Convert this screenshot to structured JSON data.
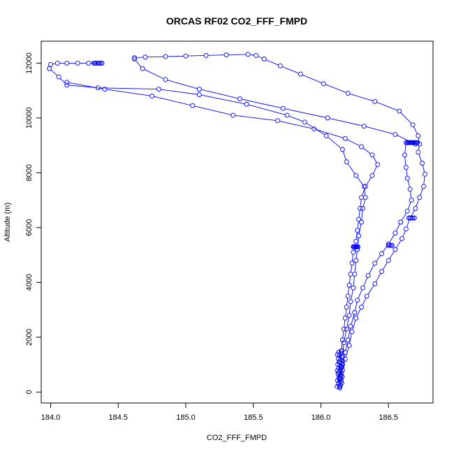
{
  "chart_data": {
    "type": "scatter",
    "title": "ORCAS RF02 CO2_FFF_FMPD",
    "xlabel": "CO2_FFF_FMPD",
    "ylabel": "Altitude (m)",
    "xlim": [
      183.93,
      186.83
    ],
    "ylim": [
      -400,
      12800
    ],
    "xticks": [
      184.0,
      184.5,
      185.0,
      185.5,
      186.0,
      186.5
    ],
    "xtick_labels": [
      "184.0",
      "184.5",
      "185.0",
      "185.5",
      "186.0",
      "186.5"
    ],
    "yticks": [
      0,
      2000,
      4000,
      6000,
      8000,
      10000,
      12000
    ],
    "ytick_labels": [
      "0",
      "2000",
      "4000",
      "6000",
      "8000",
      "10000",
      "12000"
    ],
    "grid": false,
    "color": "#0000ff",
    "marker": "open-circle",
    "series": [
      {
        "points": [
          [
            186.14,
            200
          ],
          [
            186.14,
            500
          ],
          [
            186.15,
            900
          ],
          [
            186.16,
            1300
          ],
          [
            186.17,
            1800
          ],
          [
            186.19,
            2300
          ],
          [
            186.21,
            2800
          ],
          [
            186.22,
            3300
          ],
          [
            186.24,
            3800
          ],
          [
            186.25,
            4300
          ],
          [
            186.26,
            4800
          ],
          [
            186.27,
            5200
          ],
          [
            186.28,
            5700
          ],
          [
            186.3,
            6200
          ],
          [
            186.31,
            6700
          ],
          [
            186.33,
            7100
          ],
          [
            186.32,
            7500
          ],
          [
            186.26,
            7900
          ],
          [
            186.19,
            8400
          ],
          [
            186.16,
            8850
          ],
          [
            186.04,
            9350
          ],
          [
            185.88,
            9850
          ],
          [
            185.75,
            10100
          ],
          [
            185.45,
            10500
          ],
          [
            185.1,
            10850
          ],
          [
            184.8,
            11050
          ],
          [
            184.35,
            11100
          ],
          [
            184.12,
            11200
          ],
          [
            184.06,
            11500
          ],
          [
            183.99,
            11800
          ],
          [
            184.0,
            11950
          ],
          [
            184.05,
            12000
          ],
          [
            184.12,
            12000
          ],
          [
            184.2,
            12000
          ],
          [
            184.28,
            12000
          ],
          [
            184.36,
            12000
          ],
          [
            184.38,
            12000
          ]
        ]
      },
      {
        "points": [
          [
            184.62,
            12200
          ],
          [
            184.7,
            12220
          ],
          [
            184.85,
            12240
          ],
          [
            185.0,
            12260
          ],
          [
            185.15,
            12280
          ],
          [
            185.3,
            12300
          ],
          [
            185.46,
            12320
          ],
          [
            185.52,
            12280
          ],
          [
            185.58,
            12150
          ],
          [
            185.7,
            11900
          ],
          [
            185.85,
            11600
          ],
          [
            186.02,
            11250
          ],
          [
            186.2,
            10900
          ],
          [
            186.4,
            10600
          ],
          [
            186.58,
            10250
          ],
          [
            186.68,
            9750
          ],
          [
            186.72,
            9350
          ],
          [
            186.73,
            9050
          ],
          [
            186.72,
            8750
          ],
          [
            186.75,
            8350
          ],
          [
            186.77,
            7950
          ],
          [
            186.76,
            7500
          ],
          [
            186.73,
            7100
          ],
          [
            186.7,
            6700
          ],
          [
            186.66,
            6350
          ],
          [
            186.63,
            5950
          ],
          [
            186.6,
            5600
          ],
          [
            186.55,
            5200
          ],
          [
            186.5,
            4800
          ],
          [
            186.45,
            4400
          ],
          [
            186.4,
            3950
          ],
          [
            186.34,
            3500
          ],
          [
            186.3,
            3100
          ],
          [
            186.26,
            2700
          ],
          [
            186.23,
            2200
          ],
          [
            186.21,
            1700
          ],
          [
            186.18,
            1200
          ],
          [
            186.16,
            800
          ],
          [
            186.15,
            400
          ],
          [
            186.14,
            200
          ]
        ]
      },
      {
        "points": [
          [
            186.14,
            150
          ],
          [
            186.15,
            600
          ],
          [
            186.16,
            1000
          ],
          [
            186.18,
            1450
          ],
          [
            186.2,
            1900
          ],
          [
            186.22,
            2400
          ],
          [
            186.25,
            2900
          ],
          [
            186.27,
            3350
          ],
          [
            186.31,
            3800
          ],
          [
            186.35,
            4250
          ],
          [
            186.4,
            4700
          ],
          [
            186.45,
            5050
          ],
          [
            186.5,
            5400
          ],
          [
            186.55,
            5800
          ],
          [
            186.59,
            6200
          ],
          [
            186.64,
            6600
          ],
          [
            186.67,
            7000
          ],
          [
            186.66,
            7400
          ],
          [
            186.64,
            7800
          ],
          [
            186.63,
            8200
          ],
          [
            186.62,
            8650
          ],
          [
            186.63,
            9100
          ],
          [
            186.67,
            9100
          ],
          [
            186.7,
            9050
          ],
          [
            186.55,
            9400
          ],
          [
            186.32,
            9700
          ],
          [
            186.05,
            10000
          ],
          [
            185.72,
            10350
          ],
          [
            185.4,
            10700
          ],
          [
            185.1,
            11050
          ],
          [
            184.85,
            11400
          ],
          [
            184.68,
            11800
          ],
          [
            184.62,
            12150
          ]
        ]
      },
      {
        "points": [
          [
            184.12,
            11300
          ],
          [
            184.4,
            11050
          ],
          [
            184.75,
            10800
          ],
          [
            185.05,
            10450
          ],
          [
            185.35,
            10100
          ],
          [
            185.68,
            9900
          ],
          [
            185.95,
            9600
          ],
          [
            186.18,
            9250
          ],
          [
            186.3,
            8950
          ],
          [
            186.38,
            8650
          ],
          [
            186.42,
            8300
          ],
          [
            186.38,
            7900
          ],
          [
            186.33,
            7500
          ],
          [
            186.3,
            7100
          ],
          [
            186.29,
            6700
          ],
          [
            186.28,
            6300
          ],
          [
            186.27,
            5900
          ],
          [
            186.26,
            5500
          ],
          [
            186.24,
            5100
          ],
          [
            186.23,
            4700
          ],
          [
            186.22,
            4300
          ],
          [
            186.21,
            3900
          ],
          [
            186.2,
            3500
          ],
          [
            186.19,
            3100
          ],
          [
            186.18,
            2700
          ],
          [
            186.17,
            2300
          ],
          [
            186.16,
            1900
          ],
          [
            186.15,
            1500
          ],
          [
            186.14,
            1100
          ],
          [
            186.13,
            700
          ],
          [
            186.13,
            300
          ]
        ]
      }
    ],
    "clusters": [
      {
        "x": [
          186.64,
          186.72
        ],
        "y": 9100,
        "n": 14
      },
      {
        "x": [
          186.12,
          186.16
        ],
        "y": [
          200,
          1500
        ],
        "n": 30
      },
      {
        "x": [
          186.24,
          186.28
        ],
        "y": 5300,
        "n": 8
      },
      {
        "x": [
          184.32,
          184.38
        ],
        "y": 12000,
        "n": 6
      },
      {
        "x": [
          186.65,
          186.7
        ],
        "y": 6350,
        "n": 5
      },
      {
        "x": [
          186.5,
          186.53
        ],
        "y": 5350,
        "n": 4
      }
    ]
  }
}
